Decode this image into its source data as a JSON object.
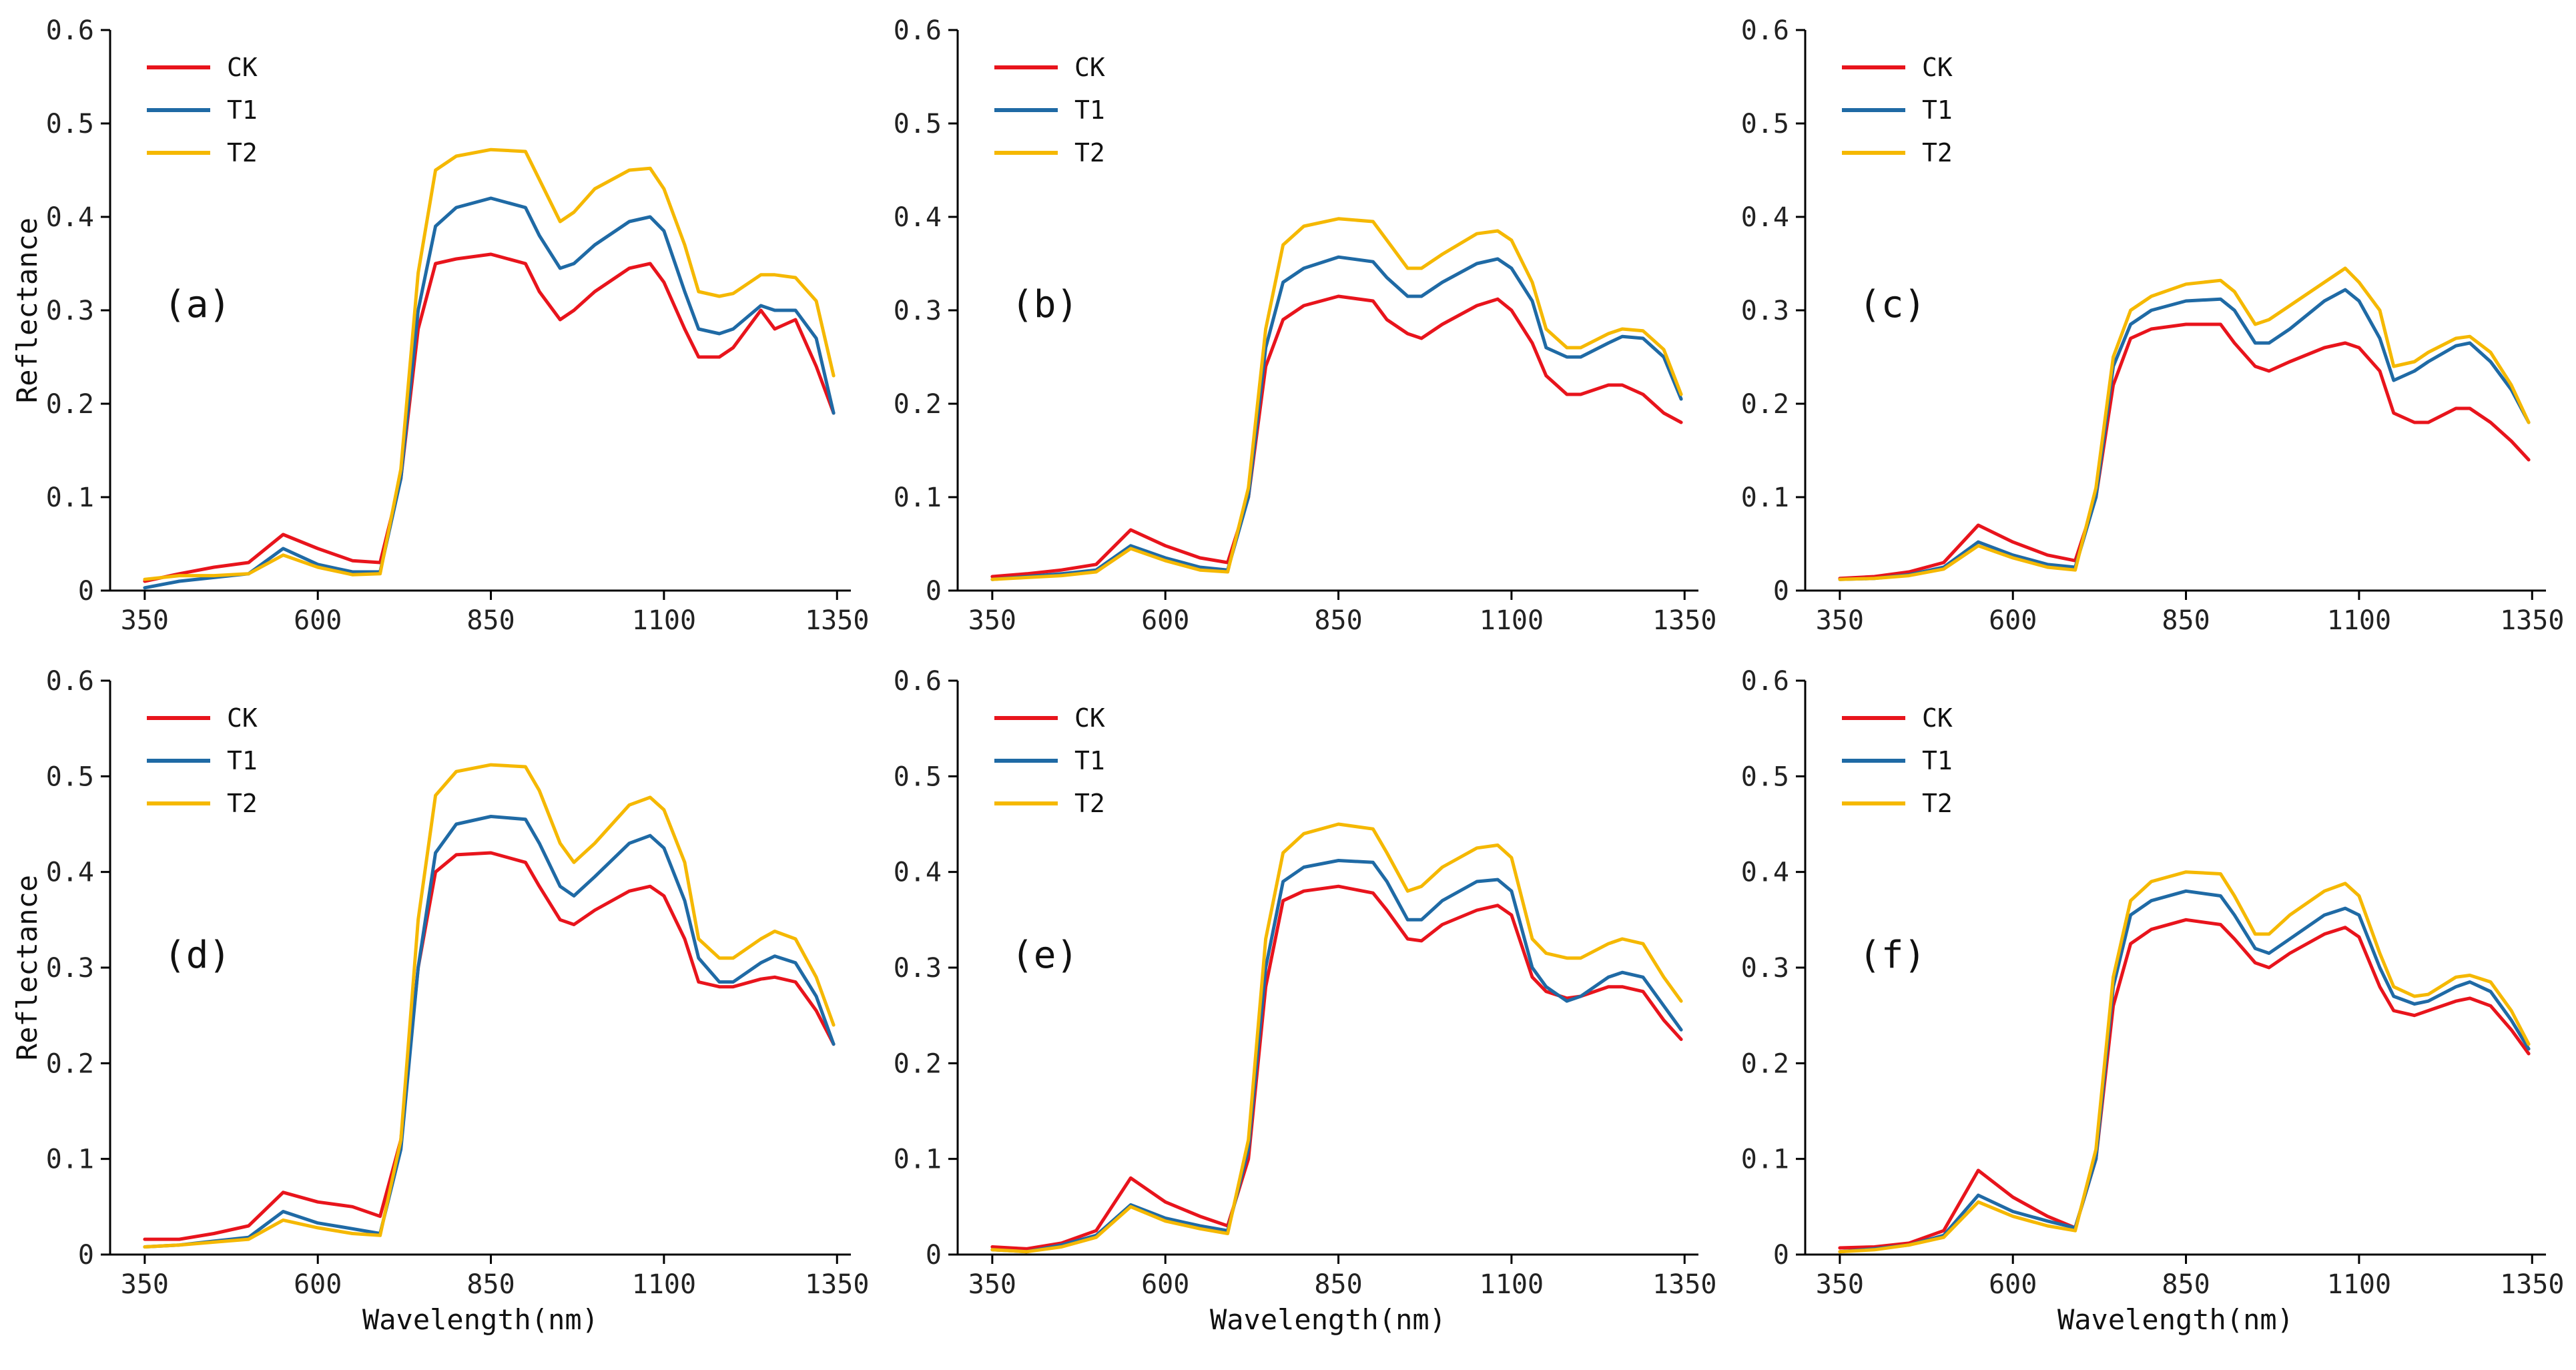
{
  "colors": {
    "CK": "#e8141c",
    "T1": "#1f6aa5",
    "T2": "#f5b800",
    "axis": "#000000"
  },
  "chart_data": [
    {
      "type": "line",
      "panel_label": "(a)",
      "xlabel": "",
      "ylabel": "Reflectance",
      "xlim": [
        300,
        1370
      ],
      "ylim": [
        0,
        0.6
      ],
      "xticks": [
        350,
        600,
        850,
        1100,
        1350
      ],
      "yticks": [
        0,
        0.1,
        0.2,
        0.3,
        0.4,
        0.5,
        0.6
      ],
      "x": [
        350,
        400,
        450,
        500,
        550,
        600,
        650,
        690,
        720,
        745,
        770,
        800,
        850,
        900,
        920,
        950,
        970,
        1000,
        1050,
        1080,
        1100,
        1130,
        1150,
        1180,
        1200,
        1240,
        1260,
        1290,
        1320,
        1345
      ],
      "series": [
        {
          "name": "CK",
          "color_key": "CK",
          "values": [
            0.01,
            0.018,
            0.025,
            0.03,
            0.06,
            0.045,
            0.032,
            0.03,
            0.12,
            0.28,
            0.35,
            0.355,
            0.36,
            0.35,
            0.32,
            0.29,
            0.3,
            0.32,
            0.345,
            0.35,
            0.33,
            0.28,
            0.25,
            0.25,
            0.26,
            0.3,
            0.28,
            0.29,
            0.24,
            0.19
          ]
        },
        {
          "name": "T1",
          "color_key": "T1",
          "values": [
            0.003,
            0.01,
            0.014,
            0.018,
            0.045,
            0.028,
            0.02,
            0.02,
            0.12,
            0.3,
            0.39,
            0.41,
            0.42,
            0.41,
            0.38,
            0.345,
            0.35,
            0.37,
            0.395,
            0.4,
            0.385,
            0.32,
            0.28,
            0.275,
            0.28,
            0.305,
            0.3,
            0.3,
            0.27,
            0.19
          ]
        },
        {
          "name": "T2",
          "color_key": "T2",
          "values": [
            0.012,
            0.016,
            0.016,
            0.018,
            0.038,
            0.025,
            0.017,
            0.018,
            0.13,
            0.34,
            0.45,
            0.465,
            0.472,
            0.47,
            0.44,
            0.395,
            0.405,
            0.43,
            0.45,
            0.452,
            0.43,
            0.37,
            0.32,
            0.315,
            0.318,
            0.338,
            0.338,
            0.335,
            0.31,
            0.23
          ]
        }
      ]
    },
    {
      "type": "line",
      "panel_label": "(b)",
      "xlabel": "",
      "ylabel": "",
      "xlim": [
        300,
        1370
      ],
      "ylim": [
        0,
        0.6
      ],
      "xticks": [
        350,
        600,
        850,
        1100,
        1350
      ],
      "yticks": [
        0,
        0.1,
        0.2,
        0.3,
        0.4,
        0.5,
        0.6
      ],
      "x": [
        350,
        400,
        450,
        500,
        550,
        600,
        650,
        690,
        720,
        745,
        770,
        800,
        850,
        900,
        920,
        950,
        970,
        1000,
        1050,
        1080,
        1100,
        1130,
        1150,
        1180,
        1200,
        1240,
        1260,
        1290,
        1320,
        1345
      ],
      "series": [
        {
          "name": "CK",
          "color_key": "CK",
          "values": [
            0.015,
            0.018,
            0.022,
            0.028,
            0.065,
            0.048,
            0.035,
            0.03,
            0.1,
            0.24,
            0.29,
            0.305,
            0.315,
            0.31,
            0.29,
            0.275,
            0.27,
            0.285,
            0.305,
            0.312,
            0.3,
            0.265,
            0.23,
            0.21,
            0.21,
            0.22,
            0.22,
            0.21,
            0.19,
            0.18
          ]
        },
        {
          "name": "T1",
          "color_key": "T1",
          "values": [
            0.012,
            0.015,
            0.018,
            0.022,
            0.048,
            0.035,
            0.025,
            0.022,
            0.1,
            0.26,
            0.33,
            0.345,
            0.357,
            0.352,
            0.335,
            0.315,
            0.315,
            0.33,
            0.35,
            0.355,
            0.345,
            0.31,
            0.26,
            0.25,
            0.25,
            0.265,
            0.272,
            0.27,
            0.25,
            0.205
          ]
        },
        {
          "name": "T2",
          "color_key": "T2",
          "values": [
            0.012,
            0.014,
            0.016,
            0.02,
            0.045,
            0.032,
            0.022,
            0.02,
            0.11,
            0.28,
            0.37,
            0.39,
            0.398,
            0.395,
            0.375,
            0.345,
            0.345,
            0.36,
            0.382,
            0.385,
            0.375,
            0.33,
            0.28,
            0.26,
            0.26,
            0.275,
            0.28,
            0.278,
            0.258,
            0.21
          ]
        }
      ]
    },
    {
      "type": "line",
      "panel_label": "(c)",
      "xlabel": "",
      "ylabel": "",
      "xlim": [
        300,
        1370
      ],
      "ylim": [
        0,
        0.6
      ],
      "xticks": [
        350,
        600,
        850,
        1100,
        1350
      ],
      "yticks": [
        0,
        0.1,
        0.2,
        0.3,
        0.4,
        0.5,
        0.6
      ],
      "x": [
        350,
        400,
        450,
        500,
        550,
        600,
        650,
        690,
        720,
        745,
        770,
        800,
        850,
        900,
        920,
        950,
        970,
        1000,
        1050,
        1080,
        1100,
        1130,
        1150,
        1180,
        1200,
        1240,
        1260,
        1290,
        1320,
        1345
      ],
      "series": [
        {
          "name": "CK",
          "color_key": "CK",
          "values": [
            0.013,
            0.015,
            0.02,
            0.03,
            0.07,
            0.052,
            0.038,
            0.032,
            0.1,
            0.22,
            0.27,
            0.28,
            0.285,
            0.285,
            0.265,
            0.24,
            0.235,
            0.245,
            0.26,
            0.265,
            0.26,
            0.235,
            0.19,
            0.18,
            0.18,
            0.195,
            0.195,
            0.18,
            0.16,
            0.14
          ]
        },
        {
          "name": "T1",
          "color_key": "T1",
          "values": [
            0.012,
            0.013,
            0.017,
            0.025,
            0.052,
            0.038,
            0.028,
            0.025,
            0.1,
            0.24,
            0.285,
            0.3,
            0.31,
            0.312,
            0.3,
            0.265,
            0.265,
            0.28,
            0.31,
            0.322,
            0.31,
            0.27,
            0.225,
            0.235,
            0.245,
            0.262,
            0.265,
            0.245,
            0.215,
            0.18
          ]
        },
        {
          "name": "T2",
          "color_key": "T2",
          "values": [
            0.012,
            0.013,
            0.016,
            0.023,
            0.048,
            0.035,
            0.025,
            0.022,
            0.11,
            0.25,
            0.3,
            0.315,
            0.328,
            0.332,
            0.32,
            0.285,
            0.29,
            0.305,
            0.33,
            0.345,
            0.33,
            0.3,
            0.24,
            0.245,
            0.255,
            0.27,
            0.272,
            0.255,
            0.22,
            0.18
          ]
        }
      ]
    },
    {
      "type": "line",
      "panel_label": "(d)",
      "xlabel": "Wavelength(nm)",
      "ylabel": "Reflectance",
      "xlim": [
        300,
        1370
      ],
      "ylim": [
        0,
        0.6
      ],
      "xticks": [
        350,
        600,
        850,
        1100,
        1350
      ],
      "yticks": [
        0,
        0.1,
        0.2,
        0.3,
        0.4,
        0.5,
        0.6
      ],
      "x": [
        350,
        400,
        450,
        500,
        550,
        600,
        650,
        690,
        720,
        745,
        770,
        800,
        850,
        900,
        920,
        950,
        970,
        1000,
        1050,
        1080,
        1100,
        1130,
        1150,
        1180,
        1200,
        1240,
        1260,
        1290,
        1320,
        1345
      ],
      "series": [
        {
          "name": "CK",
          "color_key": "CK",
          "values": [
            0.016,
            0.016,
            0.022,
            0.03,
            0.065,
            0.055,
            0.05,
            0.04,
            0.12,
            0.3,
            0.4,
            0.418,
            0.42,
            0.41,
            0.385,
            0.35,
            0.345,
            0.36,
            0.38,
            0.385,
            0.375,
            0.33,
            0.285,
            0.28,
            0.28,
            0.288,
            0.29,
            0.285,
            0.255,
            0.22
          ]
        },
        {
          "name": "T1",
          "color_key": "T1",
          "values": [
            0.008,
            0.01,
            0.014,
            0.018,
            0.045,
            0.033,
            0.027,
            0.022,
            0.11,
            0.3,
            0.42,
            0.45,
            0.458,
            0.455,
            0.43,
            0.385,
            0.375,
            0.395,
            0.43,
            0.438,
            0.425,
            0.37,
            0.31,
            0.285,
            0.285,
            0.305,
            0.312,
            0.305,
            0.27,
            0.22
          ]
        },
        {
          "name": "T2",
          "color_key": "T2",
          "values": [
            0.008,
            0.01,
            0.013,
            0.016,
            0.036,
            0.028,
            0.022,
            0.02,
            0.12,
            0.35,
            0.48,
            0.505,
            0.512,
            0.51,
            0.485,
            0.43,
            0.41,
            0.43,
            0.47,
            0.478,
            0.465,
            0.41,
            0.33,
            0.31,
            0.31,
            0.33,
            0.338,
            0.33,
            0.29,
            0.24
          ]
        }
      ]
    },
    {
      "type": "line",
      "panel_label": "(e)",
      "xlabel": "Wavelength(nm)",
      "ylabel": "",
      "xlim": [
        300,
        1370
      ],
      "ylim": [
        0,
        0.6
      ],
      "xticks": [
        350,
        600,
        850,
        1100,
        1350
      ],
      "yticks": [
        0,
        0.1,
        0.2,
        0.3,
        0.4,
        0.5,
        0.6
      ],
      "x": [
        350,
        400,
        450,
        500,
        550,
        600,
        650,
        690,
        720,
        745,
        770,
        800,
        850,
        900,
        920,
        950,
        970,
        1000,
        1050,
        1080,
        1100,
        1130,
        1150,
        1180,
        1200,
        1240,
        1260,
        1290,
        1320,
        1345
      ],
      "series": [
        {
          "name": "CK",
          "color_key": "CK",
          "values": [
            0.008,
            0.006,
            0.012,
            0.025,
            0.08,
            0.055,
            0.04,
            0.03,
            0.1,
            0.28,
            0.37,
            0.38,
            0.385,
            0.378,
            0.36,
            0.33,
            0.328,
            0.345,
            0.36,
            0.365,
            0.355,
            0.29,
            0.275,
            0.268,
            0.27,
            0.28,
            0.28,
            0.275,
            0.245,
            0.225
          ]
        },
        {
          "name": "T1",
          "color_key": "T1",
          "values": [
            0.005,
            0.003,
            0.01,
            0.02,
            0.052,
            0.038,
            0.03,
            0.025,
            0.11,
            0.3,
            0.39,
            0.405,
            0.412,
            0.41,
            0.39,
            0.35,
            0.35,
            0.37,
            0.39,
            0.392,
            0.38,
            0.3,
            0.28,
            0.265,
            0.27,
            0.29,
            0.295,
            0.29,
            0.26,
            0.235
          ]
        },
        {
          "name": "T2",
          "color_key": "T2",
          "values": [
            0.005,
            0.003,
            0.008,
            0.018,
            0.05,
            0.035,
            0.027,
            0.022,
            0.12,
            0.33,
            0.42,
            0.44,
            0.45,
            0.445,
            0.42,
            0.38,
            0.385,
            0.405,
            0.425,
            0.428,
            0.415,
            0.33,
            0.315,
            0.31,
            0.31,
            0.325,
            0.33,
            0.325,
            0.29,
            0.265
          ]
        }
      ]
    },
    {
      "type": "line",
      "panel_label": "(f)",
      "xlabel": "Wavelength(nm)",
      "ylabel": "",
      "xlim": [
        300,
        1370
      ],
      "ylim": [
        0,
        0.6
      ],
      "xticks": [
        350,
        600,
        850,
        1100,
        1350
      ],
      "yticks": [
        0,
        0.1,
        0.2,
        0.3,
        0.4,
        0.5,
        0.6
      ],
      "x": [
        350,
        400,
        450,
        500,
        550,
        600,
        650,
        690,
        720,
        745,
        770,
        800,
        850,
        900,
        920,
        950,
        970,
        1000,
        1050,
        1080,
        1100,
        1130,
        1150,
        1180,
        1200,
        1240,
        1260,
        1290,
        1320,
        1345
      ],
      "series": [
        {
          "name": "CK",
          "color_key": "CK",
          "values": [
            0.007,
            0.008,
            0.012,
            0.025,
            0.088,
            0.06,
            0.04,
            0.028,
            0.1,
            0.26,
            0.325,
            0.34,
            0.35,
            0.345,
            0.33,
            0.305,
            0.3,
            0.315,
            0.335,
            0.342,
            0.332,
            0.28,
            0.255,
            0.25,
            0.255,
            0.265,
            0.268,
            0.26,
            0.235,
            0.21
          ]
        },
        {
          "name": "T1",
          "color_key": "T1",
          "values": [
            0.003,
            0.006,
            0.01,
            0.02,
            0.062,
            0.045,
            0.035,
            0.028,
            0.1,
            0.28,
            0.355,
            0.37,
            0.38,
            0.375,
            0.355,
            0.32,
            0.315,
            0.33,
            0.355,
            0.362,
            0.355,
            0.3,
            0.27,
            0.262,
            0.265,
            0.28,
            0.285,
            0.275,
            0.245,
            0.215
          ]
        },
        {
          "name": "T2",
          "color_key": "T2",
          "values": [
            0.003,
            0.005,
            0.01,
            0.018,
            0.055,
            0.04,
            0.03,
            0.025,
            0.11,
            0.29,
            0.37,
            0.39,
            0.4,
            0.398,
            0.375,
            0.335,
            0.335,
            0.355,
            0.38,
            0.388,
            0.375,
            0.315,
            0.28,
            0.27,
            0.272,
            0.29,
            0.292,
            0.285,
            0.255,
            0.22
          ]
        }
      ]
    }
  ]
}
